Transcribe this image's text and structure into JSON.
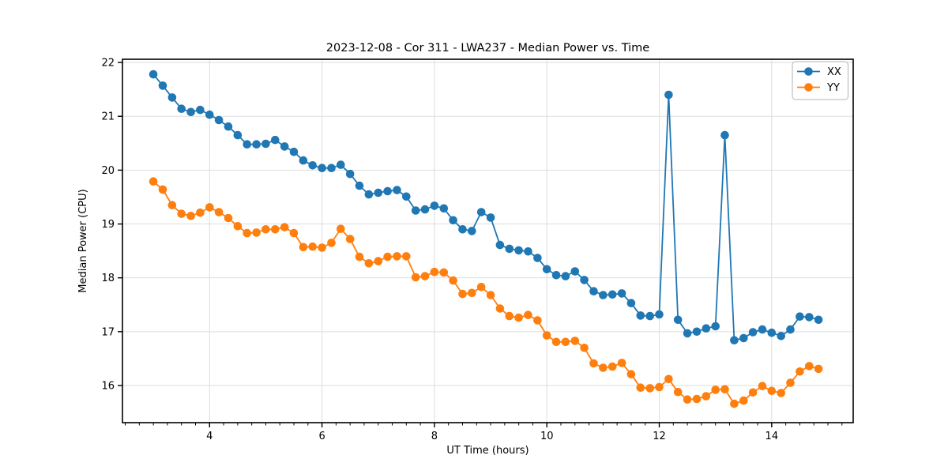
{
  "chart_data": {
    "type": "line",
    "title": "2023-12-08 - Cor 311 - LWA237 - Median Power vs. Time",
    "xlabel": "UT Time (hours)",
    "ylabel": "Median Power (CPU)",
    "xlim": [
      2.45,
      15.45
    ],
    "ylim": [
      15.31,
      22.06
    ],
    "xticks": [
      4,
      6,
      8,
      10,
      12,
      14
    ],
    "yticks": [
      16,
      17,
      18,
      19,
      20,
      21,
      22
    ],
    "x_minor_tick_step": 0.25,
    "grid": true,
    "grid_color": "#dddddd",
    "spine_color": "#000000",
    "background_color": "#ffffff",
    "legend_position": "upper right",
    "legend_border_color": "#b3b3b3",
    "x": [
      3.0,
      3.1667,
      3.3333,
      3.5,
      3.6667,
      3.8333,
      4.0,
      4.1667,
      4.3333,
      4.5,
      4.6667,
      4.8333,
      5.0,
      5.1667,
      5.3333,
      5.5,
      5.6667,
      5.8333,
      6.0,
      6.1667,
      6.3333,
      6.5,
      6.6667,
      6.8333,
      7.0,
      7.1667,
      7.3333,
      7.5,
      7.6667,
      7.8333,
      8.0,
      8.1667,
      8.3333,
      8.5,
      8.6667,
      8.8333,
      9.0,
      9.1667,
      9.3333,
      9.5,
      9.6667,
      9.8333,
      10.0,
      10.1667,
      10.3333,
      10.5,
      10.6667,
      10.8333,
      11.0,
      11.1667,
      11.3333,
      11.5,
      11.6667,
      11.8333,
      12.0,
      12.1667,
      12.3333,
      12.5,
      12.6667,
      12.8333,
      13.0,
      13.1667,
      13.3333,
      13.5,
      13.6667,
      13.8333,
      14.0,
      14.1667,
      14.3333,
      14.5,
      14.6667,
      14.8333
    ],
    "series": [
      {
        "name": "XX",
        "color": "#1f77b4",
        "values": [
          21.78,
          21.57,
          21.35,
          21.14,
          21.08,
          21.12,
          21.03,
          20.93,
          20.81,
          20.65,
          20.48,
          20.48,
          20.49,
          20.56,
          20.44,
          20.34,
          20.18,
          20.09,
          20.04,
          20.04,
          20.1,
          19.93,
          19.71,
          19.55,
          19.58,
          19.61,
          19.63,
          19.51,
          19.25,
          19.27,
          19.34,
          19.29,
          19.07,
          18.9,
          18.87,
          19.22,
          19.12,
          18.61,
          18.54,
          18.51,
          18.49,
          18.37,
          18.16,
          18.05,
          18.03,
          18.12,
          17.96,
          17.75,
          17.68,
          17.69,
          17.71,
          17.53,
          17.3,
          17.29,
          17.32,
          21.4,
          17.22,
          16.97,
          17.0,
          17.06,
          17.1,
          20.65,
          16.84,
          16.88,
          16.99,
          17.04,
          16.98,
          16.92,
          17.04,
          17.28,
          17.27,
          17.22
        ]
      },
      {
        "name": "YY",
        "color": "#ff7f0e",
        "values": [
          19.79,
          19.64,
          19.35,
          19.19,
          19.15,
          19.21,
          19.31,
          19.22,
          19.11,
          18.96,
          18.83,
          18.84,
          18.9,
          18.9,
          18.94,
          18.83,
          18.57,
          18.58,
          18.56,
          18.65,
          18.91,
          18.72,
          18.39,
          18.27,
          18.31,
          18.39,
          18.4,
          18.4,
          18.01,
          18.03,
          18.11,
          18.1,
          17.95,
          17.7,
          17.72,
          17.83,
          17.68,
          17.43,
          17.29,
          17.26,
          17.31,
          17.21,
          16.93,
          16.81,
          16.81,
          16.83,
          16.7,
          16.41,
          16.33,
          16.35,
          16.42,
          16.21,
          15.96,
          15.95,
          15.97,
          16.12,
          15.88,
          15.74,
          15.75,
          15.8,
          15.92,
          15.93,
          15.66,
          15.72,
          15.87,
          15.99,
          15.9,
          15.86,
          16.05,
          16.26,
          16.36,
          16.31
        ]
      }
    ]
  }
}
